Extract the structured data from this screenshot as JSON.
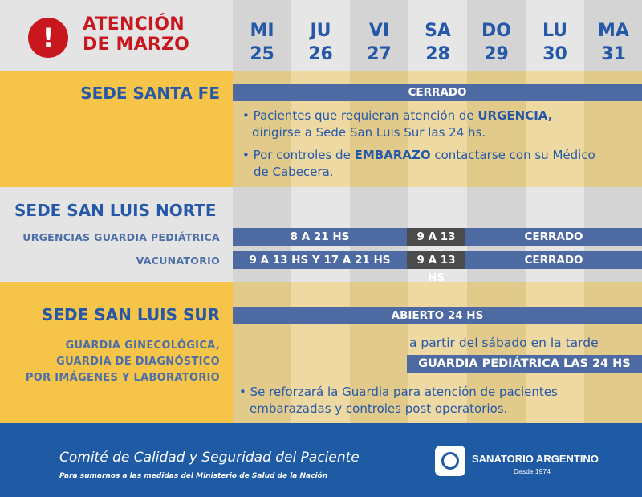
{
  "header": {
    "alert_symbol": "!",
    "title_line1": "ATENCIÓN",
    "title_line2": "DE MARZO",
    "days": [
      {
        "dow": "MI",
        "num": "25"
      },
      {
        "dow": "JU",
        "num": "26"
      },
      {
        "dow": "VI",
        "num": "27"
      },
      {
        "dow": "SA",
        "num": "28"
      },
      {
        "dow": "DO",
        "num": "29"
      },
      {
        "dow": "LU",
        "num": "30"
      },
      {
        "dow": "MA",
        "num": "31"
      }
    ]
  },
  "santa_fe": {
    "name": "SEDE SANTA FE",
    "status": "CERRADO",
    "note1_pre": "• Pacientes que requieran atención de ",
    "note1_bold": "URGENCIA,",
    "note1_post": "dirigirse a Sede San Luis Sur las 24 hs.",
    "note2_pre": "• Por controles de ",
    "note2_bold": "EMBARAZO",
    "note2_mid": " contactarse con su Médico",
    "note2_post": "de Cabecera."
  },
  "san_luis_norte": {
    "name": "SEDE SAN LUIS NORTE",
    "services": [
      {
        "label": "URGENCIAS GUARDIA PEDIÁTRICA",
        "weekday": "8 A 21 HS",
        "saturday": "9 A 13 HS",
        "rest": "CERRADO"
      },
      {
        "label": "VACUNATORIO",
        "weekday": "9 A 13 HS Y 17 A 21 HS",
        "saturday": "9 A 13 HS",
        "rest": "CERRADO"
      }
    ]
  },
  "san_luis_sur": {
    "name": "SEDE SAN LUIS SUR",
    "services_line1": "GUARDIA GINECOLÓGICA,",
    "services_line2": "GUARDIA DE DIAGNÓSTICO",
    "services_line3": "POR IMÁGENES Y LABORATORIO",
    "status": "ABIERTO 24 HS",
    "from_saturday": "a partir del sábado en la tarde",
    "pediatric": "GUARDIA PEDIÁTRICA LAS 24 HS",
    "note_line1": "• Se reforzará la Guardia para atención de pacientes",
    "note_line2": "embarazadas y controles post operatorios."
  },
  "footer": {
    "committee": "Comité de Calidad y Seguridad del Paciente",
    "subline": "Para sumarnos a las medidas del Ministerio de Salud de la Nación",
    "brand": "SANATORIO ARGENTINO",
    "since": "Desde 1974"
  },
  "colors": {
    "accent_red": "#c8171e",
    "brand_blue": "#2558a8",
    "bar_blue": "#4d6aa3",
    "yellow": "#f6c448",
    "grey": "#e4e4e4",
    "footer_blue": "#1f5aa5"
  }
}
